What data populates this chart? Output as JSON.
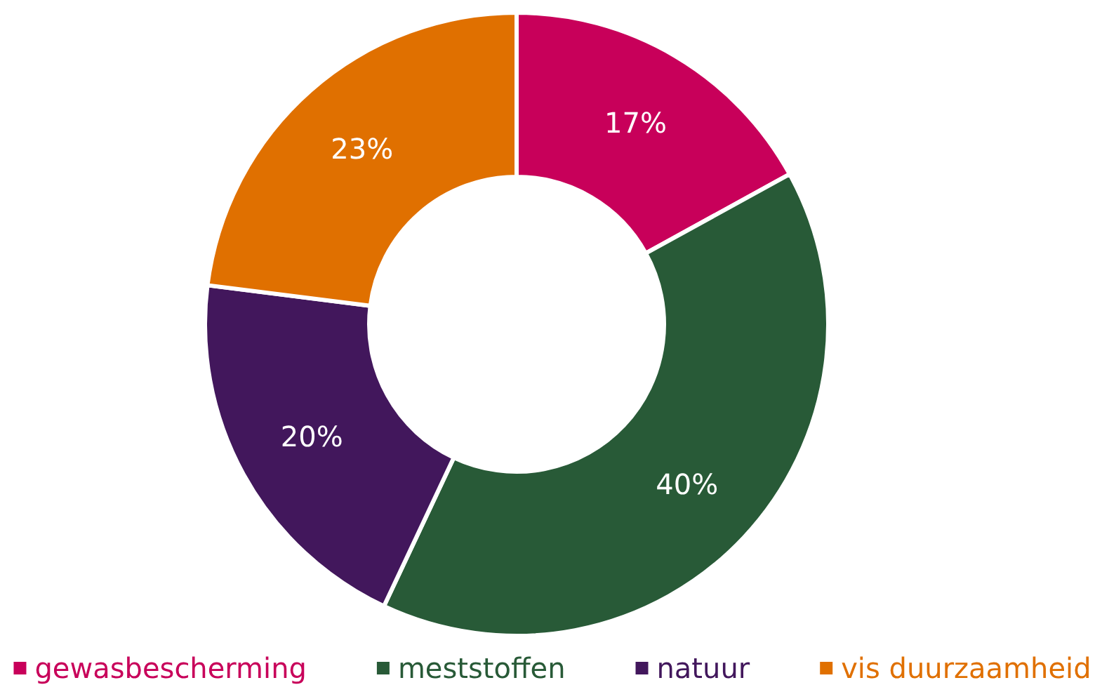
{
  "chart_data": {
    "type": "donut",
    "categories": [
      "gewasbescherming",
      "meststoffen",
      "natuur",
      "vis duurzaamheid"
    ],
    "values": [
      17,
      40,
      20,
      23
    ],
    "colors": [
      "#c8005a",
      "#285a37",
      "#42175c",
      "#e07000"
    ],
    "value_labels": [
      "17%",
      "40%",
      "20%",
      "23%"
    ],
    "legend": "bottom"
  }
}
